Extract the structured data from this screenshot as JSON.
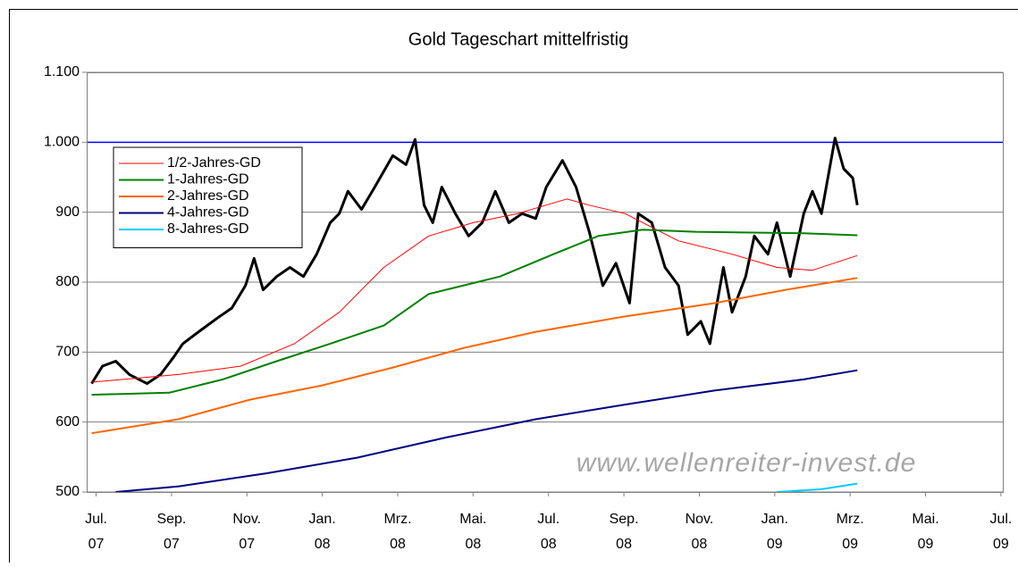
{
  "chart_data": {
    "type": "line",
    "title": "Gold Tageschart mittelfristig",
    "xlim": [
      -0.25,
      24.05
    ],
    "xticks": [
      {
        "value": 0,
        "label": "Jul. 07"
      },
      {
        "value": 2,
        "label": "Sep. 07"
      },
      {
        "value": 4,
        "label": "Nov. 07"
      },
      {
        "value": 6,
        "label": "Jan. 08"
      },
      {
        "value": 8,
        "label": "Mrz. 08"
      },
      {
        "value": 10,
        "label": "Mai. 08"
      },
      {
        "value": 12,
        "label": "Jul. 08"
      },
      {
        "value": 14,
        "label": "Sep. 08"
      },
      {
        "value": 16,
        "label": "Nov. 08"
      },
      {
        "value": 18,
        "label": "Jan. 09"
      },
      {
        "value": 20,
        "label": "Mrz. 09"
      },
      {
        "value": 22,
        "label": "Mai. 09"
      },
      {
        "value": 24,
        "label": "Jul. 09"
      }
    ],
    "ylim": [
      500,
      1100
    ],
    "yticks": [
      500,
      600,
      700,
      800,
      900,
      {
        "value": 1000,
        "label": "1.000"
      },
      {
        "value": 1100,
        "label": "1.100"
      }
    ],
    "grid": true,
    "hline": {
      "value": 1000,
      "color": "#0000ff"
    },
    "legend": "upper left",
    "annotation": "www.wellenreiter-invest.de",
    "series": [
      {
        "color": "#000000",
        "linewidth": 3,
        "x": [
          -0.12,
          0.17,
          0.52,
          0.88,
          1.35,
          1.71,
          2.06,
          2.3,
          2.77,
          3.25,
          3.6,
          3.96,
          4.19,
          4.43,
          4.79,
          5.14,
          5.5,
          5.85,
          6.21,
          6.45,
          6.68,
          7.04,
          7.39,
          7.87,
          8.22,
          8.46,
          8.7,
          8.93,
          9.17,
          9.53,
          9.88,
          10.24,
          10.59,
          10.95,
          11.3,
          11.66,
          11.94,
          12.37,
          12.73,
          13.08,
          13.44,
          13.79,
          14.15,
          14.38,
          14.74,
          15.09,
          15.45,
          15.69,
          16.04,
          16.28,
          16.64,
          16.87,
          17.23,
          17.46,
          17.82,
          18.06,
          18.41,
          18.77,
          19.0,
          19.24,
          19.6,
          19.83,
          20.07,
          20.19
        ],
        "values": [
          655,
          680,
          687,
          668,
          655,
          668,
          693,
          712,
          731,
          750,
          763,
          795,
          834,
          789,
          808,
          821,
          808,
          840,
          885,
          898,
          930,
          904,
          936,
          981,
          968,
          1004,
          910,
          885,
          936,
          898,
          866,
          885,
          930,
          885,
          898,
          891,
          936,
          974,
          936,
          872,
          795,
          827,
          770,
          898,
          885,
          821,
          795,
          725,
          744,
          712,
          821,
          757,
          808,
          866,
          840,
          885,
          808,
          898,
          930,
          898,
          1006,
          962,
          949,
          910
        ]
      },
      {
        "name": "1/2-Jahres-GD",
        "color": "#ff0000",
        "linewidth": 1,
        "x": [
          -0.12,
          2.18,
          3.84,
          5.26,
          6.45,
          7.63,
          8.82,
          10.0,
          11.18,
          12.49,
          13.08,
          14.03,
          15.45,
          16.87,
          18.06,
          19.0,
          20.19
        ],
        "values": [
          657,
          668,
          680,
          712,
          757,
          821,
          866,
          885,
          898,
          919,
          910,
          898,
          859,
          840,
          821,
          817,
          838
        ]
      },
      {
        "name": "1-Jahres-GD",
        "color": "#008000",
        "linewidth": 2,
        "x": [
          -0.12,
          1.94,
          3.36,
          4.79,
          6.21,
          7.63,
          8.82,
          10.71,
          12.13,
          13.32,
          14.5,
          15.92,
          18.77,
          20.19
        ],
        "values": [
          639,
          642,
          661,
          687,
          712,
          738,
          783,
          808,
          840,
          866,
          875,
          872,
          870,
          867
        ]
      },
      {
        "name": "2-Jahres-GD",
        "color": "#ff6600",
        "linewidth": 2,
        "x": [
          -0.12,
          2.18,
          4.08,
          5.97,
          7.87,
          9.76,
          11.66,
          14.03,
          16.4,
          18.29,
          20.19
        ],
        "values": [
          584,
          604,
          632,
          652,
          678,
          706,
          729,
          751,
          770,
          789,
          806
        ]
      },
      {
        "name": "4-Jahres-GD",
        "color": "#000080",
        "linewidth": 2,
        "x": [
          0.52,
          2.18,
          4.55,
          6.92,
          9.29,
          11.66,
          14.03,
          16.4,
          18.77,
          20.19
        ],
        "values": [
          500,
          508,
          527,
          549,
          578,
          604,
          625,
          645,
          661,
          674
        ]
      },
      {
        "name": "8-Jahres-GD",
        "color": "#00ccff",
        "linewidth": 2,
        "x": [
          18.06,
          19.24,
          20.19
        ],
        "values": [
          500,
          504,
          512
        ]
      }
    ]
  }
}
